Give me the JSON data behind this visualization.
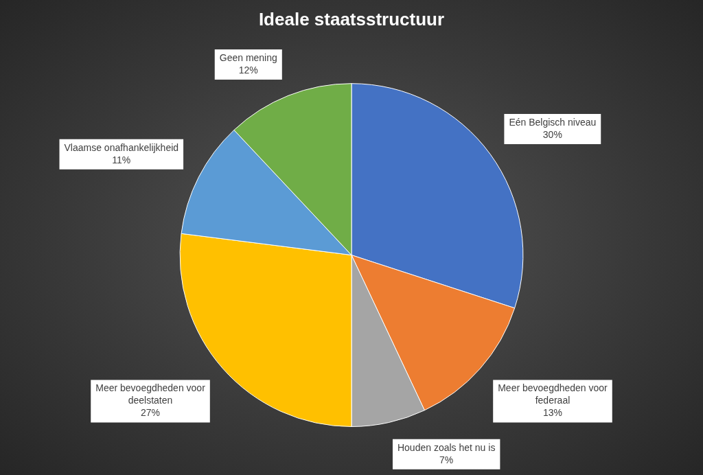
{
  "chart_data": {
    "type": "pie",
    "title": "Ideale staatsstructuur",
    "categories": [
      "Eén Belgisch niveau",
      "Meer bevoegdheden voor federaal",
      "Houden zoals het nu is",
      "Meer bevoegdheden voor deelstaten",
      "Vlaamse onafhankelijkheid",
      "Geen mening"
    ],
    "values": [
      30,
      13,
      7,
      27,
      11,
      12
    ],
    "value_labels": [
      "30%",
      "13%",
      "7%",
      "27%",
      "11%",
      "12%"
    ],
    "colors": [
      "#4472c4",
      "#ed7d31",
      "#a5a5a5",
      "#ffc000",
      "#5b9bd5",
      "#70ad47"
    ],
    "legend": false
  }
}
